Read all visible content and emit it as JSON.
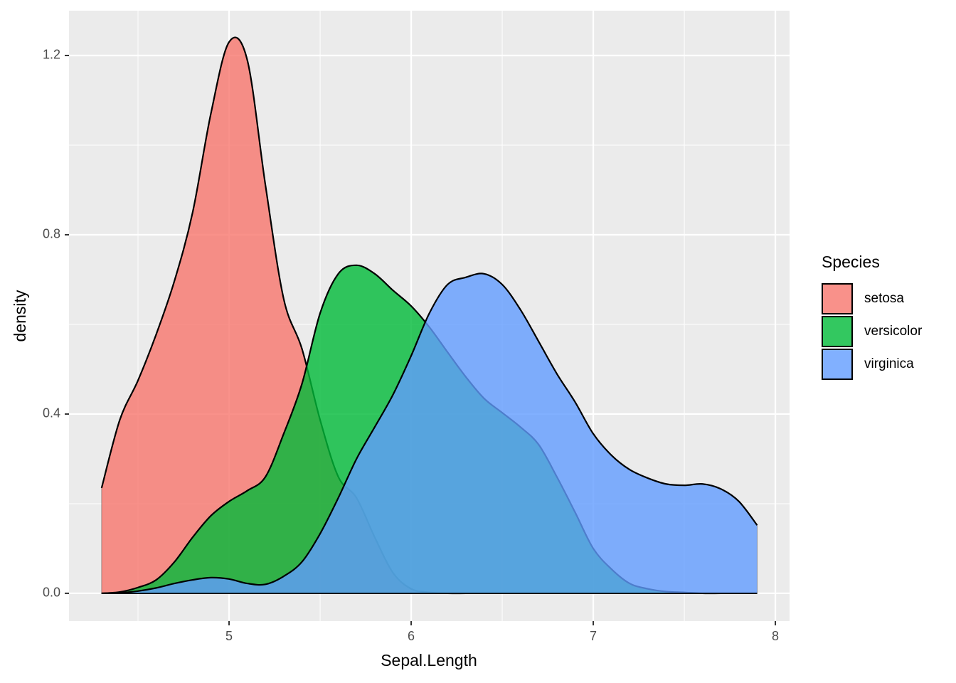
{
  "chart_data": {
    "type": "density",
    "x_label": "Sepal.Length",
    "y_label": "density",
    "legend_title": "Species",
    "legend_position": "right",
    "x": [
      4.3,
      4.4,
      4.5,
      4.6,
      4.7,
      4.8,
      4.9,
      5.0,
      5.1,
      5.2,
      5.3,
      5.4,
      5.5,
      5.6,
      5.7,
      5.8,
      5.9,
      6.0,
      6.1,
      6.2,
      6.3,
      6.4,
      6.5,
      6.6,
      6.7,
      6.8,
      6.9,
      7.0,
      7.1,
      7.2,
      7.3,
      7.4,
      7.5,
      7.6,
      7.7,
      7.8,
      7.9
    ],
    "series": [
      {
        "name": "setosa",
        "color": "#F8766D",
        "values": [
          0.235,
          0.387,
          0.475,
          0.578,
          0.697,
          0.85,
          1.07,
          1.23,
          1.19,
          0.91,
          0.657,
          0.546,
          0.387,
          0.26,
          0.213,
          0.125,
          0.046,
          0.01,
          0.002,
          0,
          0,
          0,
          0,
          0,
          0,
          0,
          0,
          0,
          0,
          0,
          0,
          0,
          0,
          0,
          0,
          0,
          0
        ]
      },
      {
        "name": "versicolor",
        "color": "#00BA38",
        "values": [
          0,
          0.003,
          0.013,
          0.03,
          0.07,
          0.125,
          0.173,
          0.205,
          0.229,
          0.26,
          0.356,
          0.467,
          0.625,
          0.713,
          0.732,
          0.713,
          0.676,
          0.641,
          0.594,
          0.538,
          0.483,
          0.435,
          0.403,
          0.371,
          0.332,
          0.26,
          0.181,
          0.1,
          0.054,
          0.022,
          0.01,
          0.004,
          0.002,
          0,
          0,
          0,
          0
        ]
      },
      {
        "name": "virginica",
        "color": "#619CFF",
        "values": [
          0,
          0.001,
          0.005,
          0.012,
          0.022,
          0.03,
          0.035,
          0.032,
          0.022,
          0.02,
          0.038,
          0.07,
          0.133,
          0.213,
          0.3,
          0.371,
          0.443,
          0.53,
          0.625,
          0.689,
          0.705,
          0.713,
          0.689,
          0.633,
          0.562,
          0.49,
          0.427,
          0.356,
          0.308,
          0.276,
          0.257,
          0.244,
          0.241,
          0.244,
          0.233,
          0.205,
          0.152
        ]
      }
    ],
    "xlim": [
      4.121,
      8.078
    ],
    "xticks": [
      5,
      6,
      7,
      8
    ],
    "ylim": [
      -0.062,
      1.3
    ],
    "yticks": [
      {
        "value": 0,
        "label": "0.0"
      },
      {
        "value": 0.4,
        "label": "0.4"
      },
      {
        "value": 0.8,
        "label": "0.8"
      },
      {
        "value": 1.2,
        "label": "1.2"
      }
    ],
    "grid": true,
    "fill_opacity": 0.8,
    "outline_color": "#000000",
    "panel_background": "#EBEBEB"
  }
}
